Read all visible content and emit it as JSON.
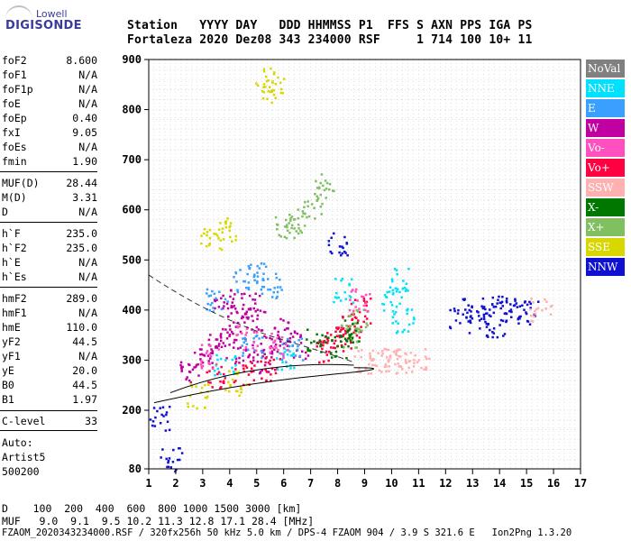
{
  "logo": {
    "top": "Lowell",
    "main": "DIGISONDE"
  },
  "header": {
    "line1": "Station   YYYY DAY   DDD HHMMSS P1  FFS S AXN PPS IGA PS",
    "line2": "Fortaleza 2020 Dez08 343 234000 RSF     1 714 100 10+ 11"
  },
  "params": [
    {
      "label": "foF2",
      "value": "8.600"
    },
    {
      "label": "foF1",
      "value": "N/A"
    },
    {
      "label": "foF1p",
      "value": "N/A"
    },
    {
      "label": "foE",
      "value": "N/A"
    },
    {
      "label": "foEp",
      "value": "0.40"
    },
    {
      "label": "fxI",
      "value": "9.05"
    },
    {
      "label": "foEs",
      "value": "N/A"
    },
    {
      "label": "fmin",
      "value": "1.90"
    },
    {
      "label": "MUF(D)",
      "value": "28.44"
    },
    {
      "label": "M(D)",
      "value": "3.31"
    },
    {
      "label": "D",
      "value": "N/A"
    },
    {
      "label": "h`F",
      "value": "235.0"
    },
    {
      "label": "h`F2",
      "value": "235.0"
    },
    {
      "label": "h`E",
      "value": "N/A"
    },
    {
      "label": "h`Es",
      "value": "N/A"
    },
    {
      "label": "hmF2",
      "value": "289.0"
    },
    {
      "label": "hmF1",
      "value": "N/A"
    },
    {
      "label": "hmE",
      "value": "110.0"
    },
    {
      "label": "yF2",
      "value": "44.5"
    },
    {
      "label": "yF1",
      "value": "N/A"
    },
    {
      "label": "yE",
      "value": "20.0"
    },
    {
      "label": "B0",
      "value": "44.5"
    },
    {
      "label": "B1",
      "value": "1.97"
    },
    {
      "label": "C-level",
      "value": "33"
    }
  ],
  "auto": {
    "line1": "Auto:",
    "line2": "Artist5",
    "line3": "500200"
  },
  "legend": [
    {
      "label": "NoVal",
      "color": "#808080"
    },
    {
      "label": "NNE",
      "color": "#00e0ff"
    },
    {
      "label": "E",
      "color": "#3aa0ff"
    },
    {
      "label": "W",
      "color": "#c000a0"
    },
    {
      "label": "Vo-",
      "color": "#ff50c0"
    },
    {
      "label": "Vo+",
      "color": "#ff0040"
    },
    {
      "label": "SSW",
      "color": "#ffb0b0"
    },
    {
      "label": "X-",
      "color": "#007800"
    },
    {
      "label": "X+",
      "color": "#80c060"
    },
    {
      "label": "SSE",
      "color": "#d8d800"
    },
    {
      "label": "NNW",
      "color": "#1010d0"
    }
  ],
  "footer": {
    "dist_line": "D    100  200  400  600  800 1000 1500 3000 [km]",
    "muf_line": "MUF   9.0  9.1  9.5 10.2 11.3 12.8 17.1 28.4 [MHz]",
    "file_line": "FZAOM_2020343234000.RSF / 320fx256h 50 kHz 5.0 km / DPS-4 FZAOM 904 / 3.9 S 321.6 E   Ion2Png 1.3.20"
  },
  "chart_data": {
    "type": "scatter",
    "title": "",
    "xlabel": "",
    "ylabel": "",
    "xlim": [
      1,
      17
    ],
    "ylim": [
      80,
      900
    ],
    "x_ticks": [
      1,
      2,
      3,
      4,
      5,
      6,
      7,
      8,
      9,
      10,
      11,
      12,
      13,
      14,
      15,
      16,
      17
    ],
    "y_ticks": [
      80,
      200,
      300,
      400,
      500,
      600,
      700,
      800,
      900
    ],
    "grid": true,
    "legend_placement": "right",
    "series": [
      {
        "name": "W",
        "color": "#c000a0",
        "points": [
          [
            3.5,
            330
          ],
          [
            4.0,
            350
          ],
          [
            4.5,
            320
          ],
          [
            5.0,
            380
          ],
          [
            5.5,
            340
          ],
          [
            6.0,
            360
          ],
          [
            3.0,
            300
          ],
          [
            4.2,
            400
          ],
          [
            5.2,
            300
          ],
          [
            6.5,
            330
          ],
          [
            2.5,
            280
          ],
          [
            3.8,
            420
          ],
          [
            4.8,
            410
          ]
        ]
      },
      {
        "name": "Vo+",
        "color": "#ff0040",
        "points": [
          [
            7.8,
            340
          ],
          [
            8.2,
            350
          ],
          [
            8.5,
            370
          ],
          [
            8.8,
            400
          ],
          [
            7.5,
            320
          ],
          [
            3.5,
            270
          ],
          [
            4.5,
            275
          ],
          [
            5.5,
            285
          ]
        ]
      },
      {
        "name": "NNE",
        "color": "#00e0ff",
        "points": [
          [
            10.0,
            420
          ],
          [
            10.2,
            460
          ],
          [
            10.4,
            380
          ],
          [
            8.2,
            440
          ],
          [
            3.8,
            290
          ],
          [
            6.0,
            300
          ]
        ]
      },
      {
        "name": "E",
        "color": "#3aa0ff",
        "points": [
          [
            4.5,
            460
          ],
          [
            5.0,
            470
          ],
          [
            5.5,
            450
          ],
          [
            3.5,
            420
          ],
          [
            4.8,
            330
          ],
          [
            6.3,
            320
          ]
        ]
      },
      {
        "name": "NNW",
        "color": "#1010d0",
        "points": [
          [
            13.0,
            400
          ],
          [
            13.5,
            390
          ],
          [
            14.0,
            410
          ],
          [
            14.5,
            400
          ],
          [
            15.0,
            395
          ],
          [
            12.5,
            380
          ],
          [
            8.0,
            530
          ],
          [
            1.4,
            185
          ],
          [
            1.8,
            100
          ],
          [
            13.8,
            370
          ]
        ]
      },
      {
        "name": "SSW",
        "color": "#ffb0b0",
        "points": [
          [
            9.0,
            300
          ],
          [
            9.5,
            300
          ],
          [
            10.0,
            300
          ],
          [
            10.5,
            300
          ],
          [
            11.0,
            300
          ],
          [
            15.5,
            400
          ]
        ]
      },
      {
        "name": "SSE",
        "color": "#d8d800",
        "points": [
          [
            3.3,
            540
          ],
          [
            3.8,
            560
          ],
          [
            5.3,
            840
          ],
          [
            5.6,
            860
          ],
          [
            2.8,
            230
          ],
          [
            4.2,
            255
          ]
        ]
      },
      {
        "name": "X+",
        "color": "#80c060",
        "points": [
          [
            6.5,
            580
          ],
          [
            7.0,
            610
          ],
          [
            7.5,
            650
          ],
          [
            6.0,
            570
          ],
          [
            8.5,
            350
          ],
          [
            8.7,
            380
          ]
        ]
      },
      {
        "name": "X-",
        "color": "#007800",
        "points": [
          [
            8.0,
            330
          ],
          [
            8.4,
            360
          ],
          [
            7.2,
            340
          ]
        ]
      },
      {
        "name": "Vo-",
        "color": "#ff50c0",
        "points": [
          [
            3.2,
            310
          ],
          [
            4.6,
            345
          ],
          [
            5.8,
            330
          ],
          [
            8.8,
            420
          ]
        ]
      }
    ]
  }
}
